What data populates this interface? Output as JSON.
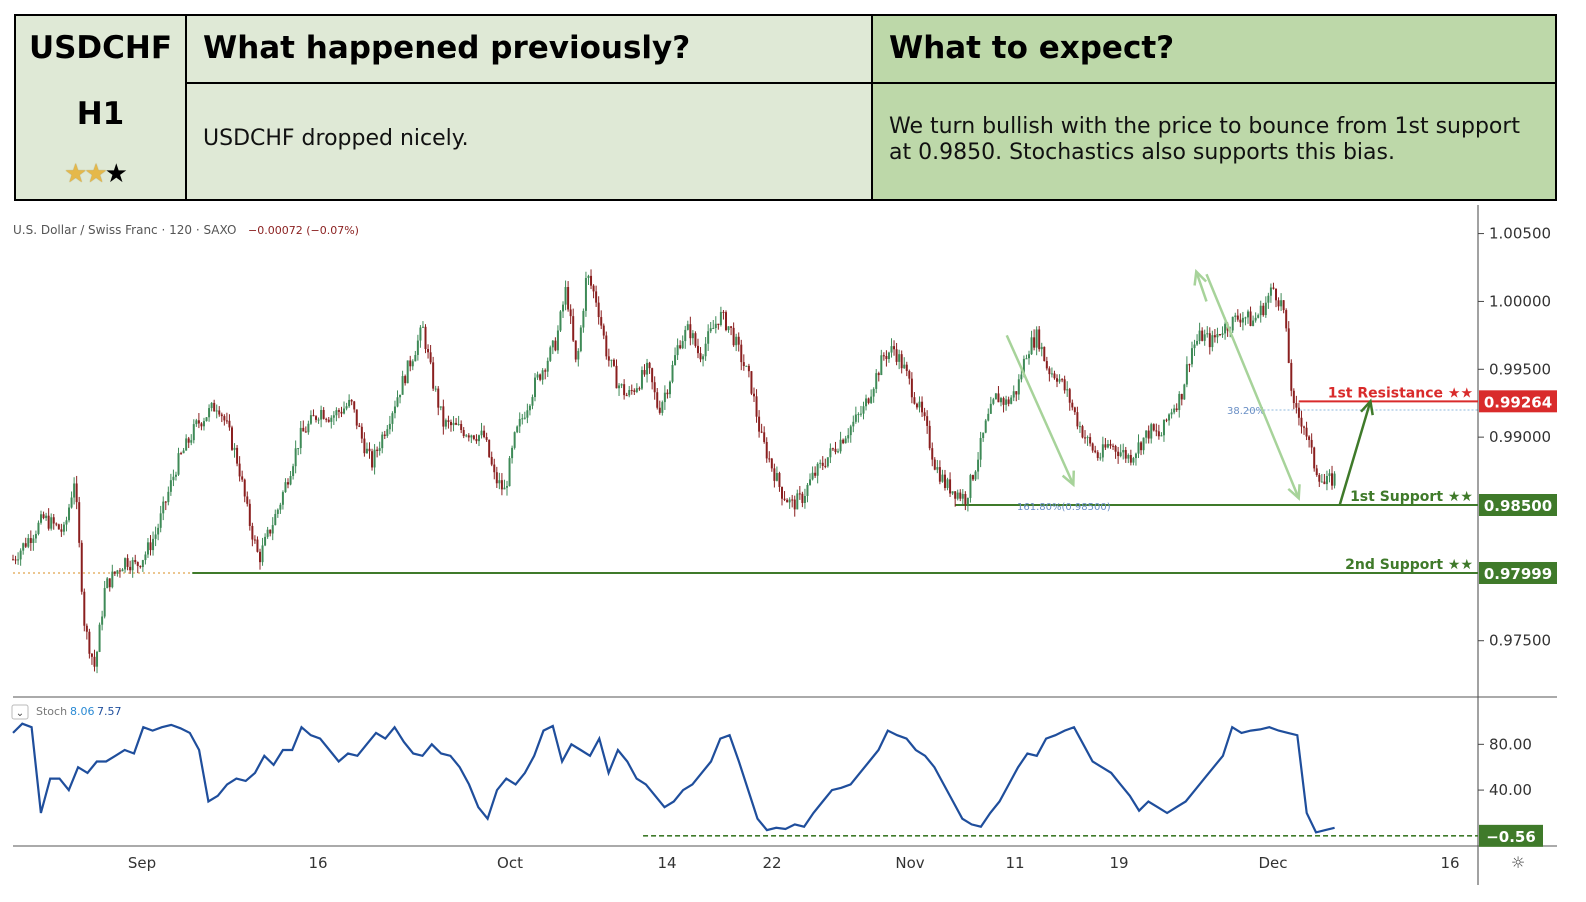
{
  "header": {
    "symbol": "USDCHF",
    "timeframe": "H1",
    "rating": {
      "filled": 2,
      "total": 3
    },
    "prev_title": "What happened previously?",
    "prev_text": "USDCHF dropped nicely.",
    "expect_title": "What to expect?",
    "expect_text": "We turn bullish with the price to bounce from 1st support at 0.9850. Stochastics also supports this bias."
  },
  "chart_info": {
    "title": "U.S. Dollar / Swiss Franc · 120 · SAXO",
    "change": "−0.00072 (−0.07%)"
  },
  "colors": {
    "bull": "#3e8a57",
    "bear": "#8a1f1f",
    "resistance": "#d92b2b",
    "support": "#3f7a2a",
    "stoch_line": "#1f4e9c",
    "arrow_light": "#a7d39a",
    "arrow_dark": "#3f7a2a"
  },
  "chart_data": [
    {
      "type": "candlestick",
      "title": "U.S. Dollar / Swiss Franc · 120 · SAXO",
      "x_ticks": [
        "Sep",
        "16",
        "Oct",
        "14",
        "22",
        "Nov",
        "11",
        "19",
        "Dec",
        "16"
      ],
      "y_ticks": [
        "1.00500",
        "1.00000",
        "0.99500",
        "0.99000",
        "0.97500"
      ],
      "ylim": [
        0.971,
        1.006
      ],
      "close_path": [
        [
          0,
          0.981
        ],
        [
          3,
          0.984
        ],
        [
          5,
          0.983
        ],
        [
          6,
          0.987
        ],
        [
          7,
          0.976
        ],
        [
          8,
          0.973
        ],
        [
          9,
          0.979
        ],
        [
          10,
          0.98
        ],
        [
          11,
          0.981
        ],
        [
          12,
          0.9805
        ],
        [
          13,
          0.9815
        ],
        [
          14,
          0.983
        ],
        [
          16,
          0.988
        ],
        [
          18,
          0.991
        ],
        [
          20,
          0.9925
        ],
        [
          21,
          0.9905
        ],
        [
          22,
          0.988
        ],
        [
          23,
          0.984
        ],
        [
          24,
          0.981
        ],
        [
          25,
          0.983
        ],
        [
          26,
          0.985
        ],
        [
          28,
          0.99
        ],
        [
          30,
          0.992
        ],
        [
          31,
          0.9915
        ],
        [
          33,
          0.9925
        ],
        [
          34,
          0.99
        ],
        [
          35,
          0.988
        ],
        [
          37,
          0.992
        ],
        [
          39,
          0.996
        ],
        [
          40,
          0.998
        ],
        [
          41,
          0.994
        ],
        [
          42,
          0.991
        ],
        [
          44,
          0.9905
        ],
        [
          46,
          0.99
        ],
        [
          47,
          0.987
        ],
        [
          48,
          0.986
        ],
        [
          49,
          0.99
        ],
        [
          51,
          0.994
        ],
        [
          53,
          0.997
        ],
        [
          54,
          1.001
        ],
        [
          55,
          0.995
        ],
        [
          56,
          1.002
        ],
        [
          57,
          1.0
        ],
        [
          58,
          0.996
        ],
        [
          59,
          0.994
        ],
        [
          60,
          0.993
        ],
        [
          62,
          0.995
        ],
        [
          63,
          0.992
        ],
        [
          64,
          0.994
        ],
        [
          65,
          0.997
        ],
        [
          66,
          0.998
        ],
        [
          67,
          0.996
        ],
        [
          68,
          0.9975
        ],
        [
          69,
          0.999
        ],
        [
          70,
          0.998
        ],
        [
          71,
          0.996
        ],
        [
          72,
          0.994
        ],
        [
          73,
          0.99
        ],
        [
          74,
          0.988
        ],
        [
          75,
          0.986
        ],
        [
          76,
          0.985
        ],
        [
          77,
          0.9855
        ],
        [
          78,
          0.987
        ],
        [
          80,
          0.989
        ],
        [
          81,
          0.99
        ],
        [
          83,
          0.992
        ],
        [
          84,
          0.994
        ],
        [
          85,
          0.996
        ],
        [
          86,
          0.9965
        ],
        [
          87,
          0.995
        ],
        [
          88,
          0.993
        ],
        [
          89,
          0.991
        ],
        [
          90,
          0.988
        ],
        [
          91,
          0.9865
        ],
        [
          92,
          0.986
        ],
        [
          93,
          0.9855
        ],
        [
          94,
          0.988
        ],
        [
          95,
          0.991
        ],
        [
          96,
          0.993
        ],
        [
          97,
          0.9925
        ],
        [
          98,
          0.9935
        ],
        [
          99,
          0.9965
        ],
        [
          100,
          0.9975
        ],
        [
          101,
          0.995
        ],
        [
          102,
          0.9945
        ],
        [
          103,
          0.993
        ],
        [
          104,
          0.991
        ],
        [
          105,
          0.9895
        ],
        [
          106,
          0.9885
        ],
        [
          107,
          0.9895
        ],
        [
          108,
          0.989
        ],
        [
          109,
          0.9885
        ],
        [
          110,
          0.9895
        ],
        [
          111,
          0.9905
        ],
        [
          112,
          0.99
        ],
        [
          113,
          0.992
        ],
        [
          114,
          0.993
        ],
        [
          115,
          0.9965
        ],
        [
          116,
          0.9975
        ],
        [
          117,
          0.997
        ],
        [
          118,
          0.998
        ],
        [
          119,
          0.9985
        ],
        [
          120,
          0.999
        ],
        [
          121,
          0.9985
        ],
        [
          122,
          0.9995
        ],
        [
          123,
          1.001
        ],
        [
          124,
          0.9995
        ],
        [
          125,
          0.992
        ],
        [
          126,
          0.991
        ],
        [
          127,
          0.988
        ],
        [
          128,
          0.9865
        ],
        [
          129,
          0.987
        ]
      ],
      "x_range": [
        0,
        143
      ],
      "levels": [
        {
          "label": "1st Resistance ★★",
          "value": "0.99264"
        },
        {
          "label": "1st Support ★★",
          "value": "0.98500"
        },
        {
          "label": "2nd Support ★★",
          "value": "0.97999"
        }
      ],
      "annotations": [
        "38.20%",
        "161.80%(0.98500)"
      ]
    },
    {
      "type": "line",
      "title": "Stoch",
      "legend_values": [
        "8.06",
        "7.57"
      ],
      "y_ticks": [
        "80.00",
        "40.00"
      ],
      "ylim": [
        -8,
        110
      ],
      "current_label": "−0.56",
      "values": [
        90,
        98,
        95,
        20,
        50,
        50,
        40,
        60,
        55,
        65,
        65,
        70,
        75,
        72,
        95,
        92,
        95,
        97,
        94,
        90,
        75,
        30,
        35,
        45,
        50,
        48,
        55,
        70,
        62,
        75,
        75,
        95,
        88,
        85,
        75,
        65,
        72,
        70,
        80,
        90,
        85,
        95,
        82,
        72,
        70,
        80,
        72,
        70,
        60,
        45,
        25,
        15,
        40,
        50,
        45,
        55,
        70,
        92,
        96,
        65,
        80,
        75,
        70,
        85,
        55,
        75,
        65,
        50,
        45,
        35,
        25,
        30,
        40,
        45,
        55,
        65,
        85,
        88,
        65,
        40,
        15,
        5,
        7,
        6,
        10,
        8,
        20,
        30,
        40,
        42,
        45,
        55,
        65,
        75,
        92,
        88,
        85,
        75,
        70,
        60,
        45,
        30,
        15,
        10,
        8,
        20,
        30,
        45,
        60,
        72,
        70,
        85,
        88,
        92,
        95,
        80,
        65,
        60,
        55,
        45,
        35,
        22,
        30,
        25,
        20,
        25,
        30,
        40,
        50,
        60,
        70,
        95,
        90,
        92,
        93,
        95,
        92,
        90,
        88,
        20,
        3,
        5,
        7
      ]
    }
  ]
}
